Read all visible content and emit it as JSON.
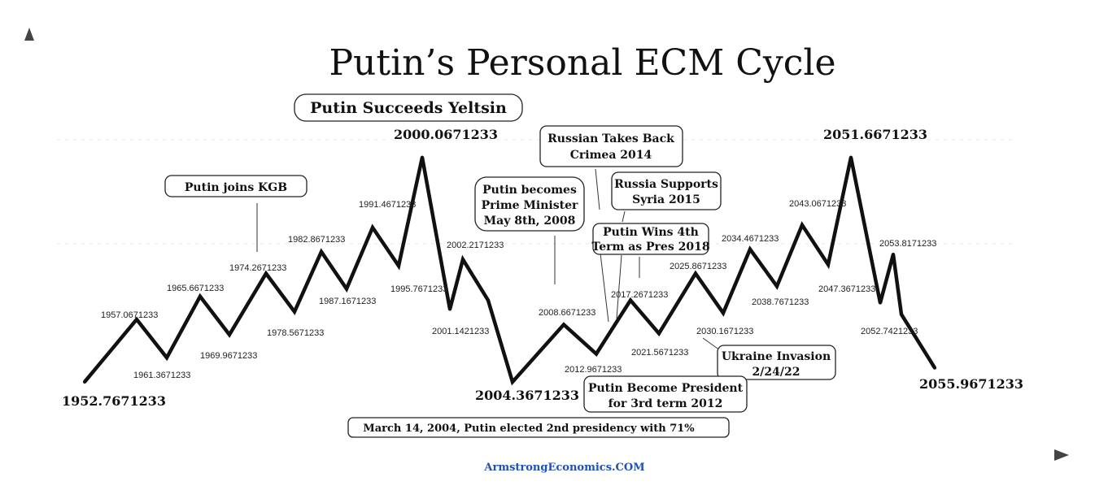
{
  "chart_data": {
    "type": "line",
    "title": "Putin’s Personal ECM Cycle",
    "credit": "ArmstrongEconomics.COM",
    "points": [
      {
        "label": "1952.7671233",
        "level": 0.0,
        "style": "big"
      },
      {
        "label": "1957.0671233",
        "level": 0.49,
        "style": "small"
      },
      {
        "label": "1961.3671233",
        "level": 0.19,
        "style": "small"
      },
      {
        "label": "1965.6671233",
        "level": 0.67,
        "style": "small"
      },
      {
        "label": "1969.9671233",
        "level": 0.37,
        "style": "small"
      },
      {
        "label": "1974.2671233",
        "level": 0.85,
        "style": "small"
      },
      {
        "label": "1978.5671233",
        "level": 0.55,
        "style": "small"
      },
      {
        "label": "1982.8671233",
        "level": 1.02,
        "style": "small"
      },
      {
        "label": "1987.1671233",
        "level": 0.73,
        "style": "small"
      },
      {
        "label": "1991.4671233",
        "level": 1.21,
        "style": "small"
      },
      {
        "label": "1995.7671233",
        "level": 0.91,
        "style": "small"
      },
      {
        "label": "2000.0671233",
        "level": 1.76,
        "style": "big"
      },
      {
        "label": "",
        "level": 0.57
      },
      {
        "label": "2002.2171233",
        "level": 0.96,
        "style": "small"
      },
      {
        "label": "2001.1421233",
        "level": 0.64,
        "style": "small"
      },
      {
        "label": "2004.3671233",
        "level": 0.0,
        "style": "big"
      },
      {
        "label": "2008.6671233",
        "level": 0.45,
        "style": "small"
      },
      {
        "label": "2012.9671233",
        "level": 0.22,
        "style": "small"
      },
      {
        "label": "2017.2671233",
        "level": 0.64,
        "style": "small"
      },
      {
        "label": "2021.5671233",
        "level": 0.38,
        "style": "small"
      },
      {
        "label": "2025.8671233",
        "level": 0.85,
        "style": "small"
      },
      {
        "label": "2030.1671233",
        "level": 0.54,
        "style": "small"
      },
      {
        "label": "2034.4671233",
        "level": 1.04,
        "style": "small"
      },
      {
        "label": "2038.7671233",
        "level": 0.75,
        "style": "small"
      },
      {
        "label": "2043.0671233",
        "level": 1.23,
        "style": "small"
      },
      {
        "label": "2047.3671233",
        "level": 0.92,
        "style": "small"
      },
      {
        "label": "2051.6671233",
        "level": 1.76,
        "style": "big"
      },
      {
        "label": "",
        "level": 0.62
      },
      {
        "label": "2053.8171233",
        "level": 1.0,
        "style": "small"
      },
      {
        "label": "2052.7421233",
        "level": 0.53,
        "style": "small"
      },
      {
        "label": "2055.9671233",
        "level": 0.11,
        "style": "big"
      }
    ],
    "annotations": [
      {
        "lines": [
          "Putin Succeeds Yeltsin"
        ]
      },
      {
        "lines": [
          "Putin joins KGB"
        ]
      },
      {
        "lines": [
          "Putin becomes",
          "Prime Minister",
          "May 8th, 2008"
        ]
      },
      {
        "lines": [
          "Russian Takes Back",
          "Crimea 2014"
        ]
      },
      {
        "lines": [
          "Russia Supports",
          "Syria 2015"
        ]
      },
      {
        "lines": [
          "Putin Wins 4th",
          "Term as Pres 2018"
        ]
      },
      {
        "lines": [
          "Ukraine Invasion",
          "2/24/22"
        ]
      },
      {
        "lines": [
          "Putin Become President",
          "for 3rd term 2012"
        ]
      },
      {
        "lines": [
          "March 14, 2004, Putin elected 2nd presidency with 71%"
        ]
      }
    ]
  }
}
